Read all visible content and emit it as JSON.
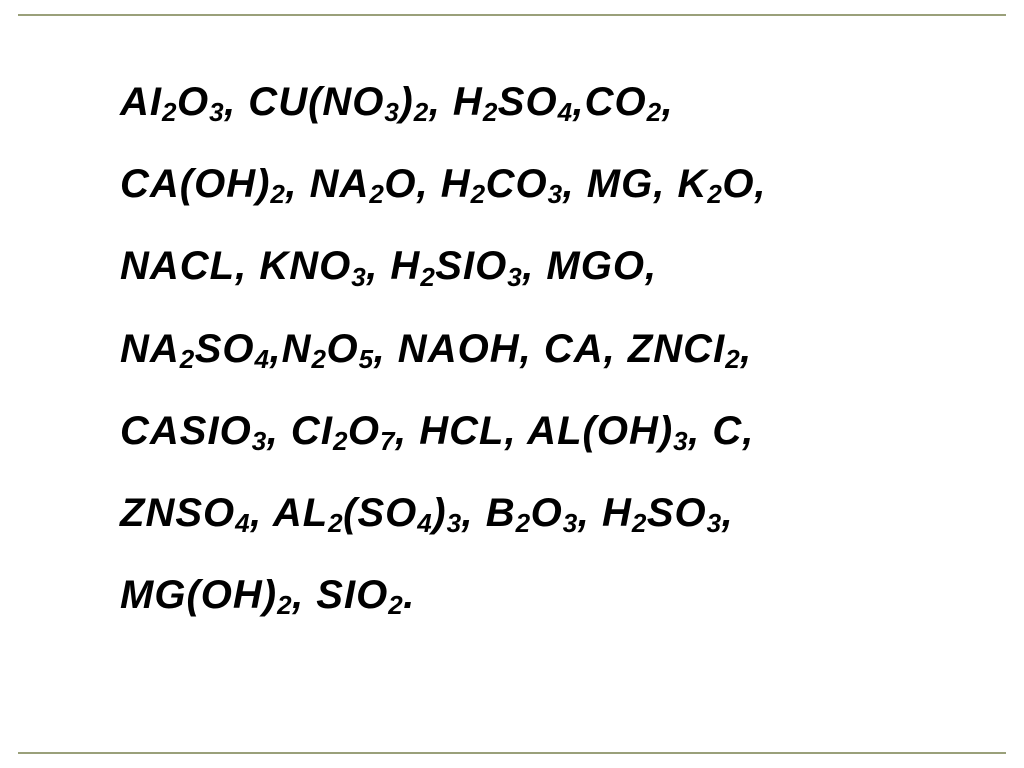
{
  "text_color": "#000000",
  "background_color": "#ffffff",
  "rule_color": "#9aa07a",
  "font_main_pt": 40,
  "font_sub_pt": 26,
  "font_weight": "bold",
  "font_style": "italic",
  "lines": [
    [
      {
        "t": "A",
        "k": "n"
      },
      {
        "t": "I",
        "k": "n"
      },
      {
        "t": "2",
        "k": "s"
      },
      {
        "t": "O",
        "k": "n"
      },
      {
        "t": "3",
        "k": "s"
      },
      {
        "t": ", C",
        "k": "sep"
      },
      {
        "t": "U",
        "k": "n"
      },
      {
        "t": "(NO",
        "k": "n"
      },
      {
        "t": "3",
        "k": "s"
      },
      {
        "t": ")",
        "k": "n"
      },
      {
        "t": "2",
        "k": "s"
      },
      {
        "t": ", H",
        "k": "sep"
      },
      {
        "t": "2",
        "k": "s"
      },
      {
        "t": "SO",
        "k": "n"
      },
      {
        "t": "4",
        "k": "s"
      },
      {
        "t": ",CO",
        "k": "sep"
      },
      {
        "t": "2",
        "k": "s"
      },
      {
        "t": ",",
        "k": "sep"
      }
    ],
    [
      {
        "t": "C",
        "k": "n"
      },
      {
        "t": "A",
        "k": "n"
      },
      {
        "t": "(OH)",
        "k": "n"
      },
      {
        "t": "2",
        "k": "s"
      },
      {
        "t": ", N",
        "k": "sep"
      },
      {
        "t": "A",
        "k": "n"
      },
      {
        "t": "2",
        "k": "s"
      },
      {
        "t": "O, H",
        "k": "sep"
      },
      {
        "t": "2",
        "k": "s"
      },
      {
        "t": "CO",
        "k": "n"
      },
      {
        "t": "3",
        "k": "s"
      },
      {
        "t": ", M",
        "k": "sep"
      },
      {
        "t": "G",
        "k": "n"
      },
      {
        "t": ", K",
        "k": "sep"
      },
      {
        "t": "2",
        "k": "s"
      },
      {
        "t": "O,",
        "k": "sep"
      }
    ],
    [
      {
        "t": "N",
        "k": "n"
      },
      {
        "t": "A",
        "k": "n"
      },
      {
        "t": "C",
        "k": "n"
      },
      {
        "t": "L",
        "k": "n"
      },
      {
        "t": ", KNO",
        "k": "sep"
      },
      {
        "t": "3",
        "k": "s"
      },
      {
        "t": ", H",
        "k": "sep"
      },
      {
        "t": "2",
        "k": "s"
      },
      {
        "t": "S",
        "k": "n"
      },
      {
        "t": "I",
        "k": "n"
      },
      {
        "t": "O",
        "k": "n"
      },
      {
        "t": "3",
        "k": "s"
      },
      {
        "t": ", M",
        "k": "sep"
      },
      {
        "t": "G",
        "k": "n"
      },
      {
        "t": "O,",
        "k": "sep"
      }
    ],
    [
      {
        "t": " N",
        "k": "n"
      },
      {
        "t": "A",
        "k": "n"
      },
      {
        "t": "2",
        "k": "s"
      },
      {
        "t": "SO",
        "k": "n"
      },
      {
        "t": "4",
        "k": "s"
      },
      {
        "t": ",N",
        "k": "sep"
      },
      {
        "t": "2",
        "k": "s"
      },
      {
        "t": "O",
        "k": "n"
      },
      {
        "t": "5",
        "k": "s"
      },
      {
        "t": ", N",
        "k": "sep"
      },
      {
        "t": "A",
        "k": "n"
      },
      {
        "t": "OH, C",
        "k": "sep"
      },
      {
        "t": "A",
        "k": "n"
      },
      {
        "t": ", Z",
        "k": "sep"
      },
      {
        "t": "N",
        "k": "n"
      },
      {
        "t": "C",
        "k": "n"
      },
      {
        "t": "I",
        "k": "n"
      },
      {
        "t": "2",
        "k": "s"
      },
      {
        "t": ",",
        "k": "sep"
      }
    ],
    [
      {
        "t": "C",
        "k": "n"
      },
      {
        "t": "A",
        "k": "n"
      },
      {
        "t": "S",
        "k": "n"
      },
      {
        "t": "I",
        "k": "n"
      },
      {
        "t": "O",
        "k": "n"
      },
      {
        "t": "3",
        "k": "s"
      },
      {
        "t": ", C",
        "k": "sep"
      },
      {
        "t": "I",
        "k": "n"
      },
      {
        "t": "2",
        "k": "s"
      },
      {
        "t": "O",
        "k": "n"
      },
      {
        "t": "7",
        "k": "s"
      },
      {
        "t": ", HC",
        "k": "sep"
      },
      {
        "t": "L",
        "k": "n"
      },
      {
        "t": ", A",
        "k": "sep"
      },
      {
        "t": "L",
        "k": "n"
      },
      {
        "t": "(OH)",
        "k": "n"
      },
      {
        "t": "3",
        "k": "s"
      },
      {
        "t": ", C,",
        "k": "sep"
      }
    ],
    [
      {
        "t": "Z",
        "k": "n"
      },
      {
        "t": "N",
        "k": "n"
      },
      {
        "t": "SO",
        "k": "n"
      },
      {
        "t": "4",
        "k": "s"
      },
      {
        "t": ", A",
        "k": "sep"
      },
      {
        "t": "L",
        "k": "n"
      },
      {
        "t": "2",
        "k": "s"
      },
      {
        "t": "(SO",
        "k": "n"
      },
      {
        "t": "4",
        "k": "s"
      },
      {
        "t": ")",
        "k": "n"
      },
      {
        "t": "3",
        "k": "s"
      },
      {
        "t": ", B",
        "k": "sep"
      },
      {
        "t": "2",
        "k": "s"
      },
      {
        "t": "O",
        "k": "n"
      },
      {
        "t": "3",
        "k": "s"
      },
      {
        "t": ", H",
        "k": "sep"
      },
      {
        "t": "2",
        "k": "s"
      },
      {
        "t": "SO",
        "k": "n"
      },
      {
        "t": "3",
        "k": "s"
      },
      {
        "t": ",",
        "k": "sep"
      }
    ],
    [
      {
        "t": "M",
        "k": "n"
      },
      {
        "t": "G",
        "k": "n"
      },
      {
        "t": "(OH)",
        "k": "n"
      },
      {
        "t": "2",
        "k": "s"
      },
      {
        "t": ", S",
        "k": "sep"
      },
      {
        "t": "I",
        "k": "n"
      },
      {
        "t": "O",
        "k": "n"
      },
      {
        "t": "2",
        "k": "s"
      },
      {
        "t": ".",
        "k": "sep"
      }
    ]
  ]
}
